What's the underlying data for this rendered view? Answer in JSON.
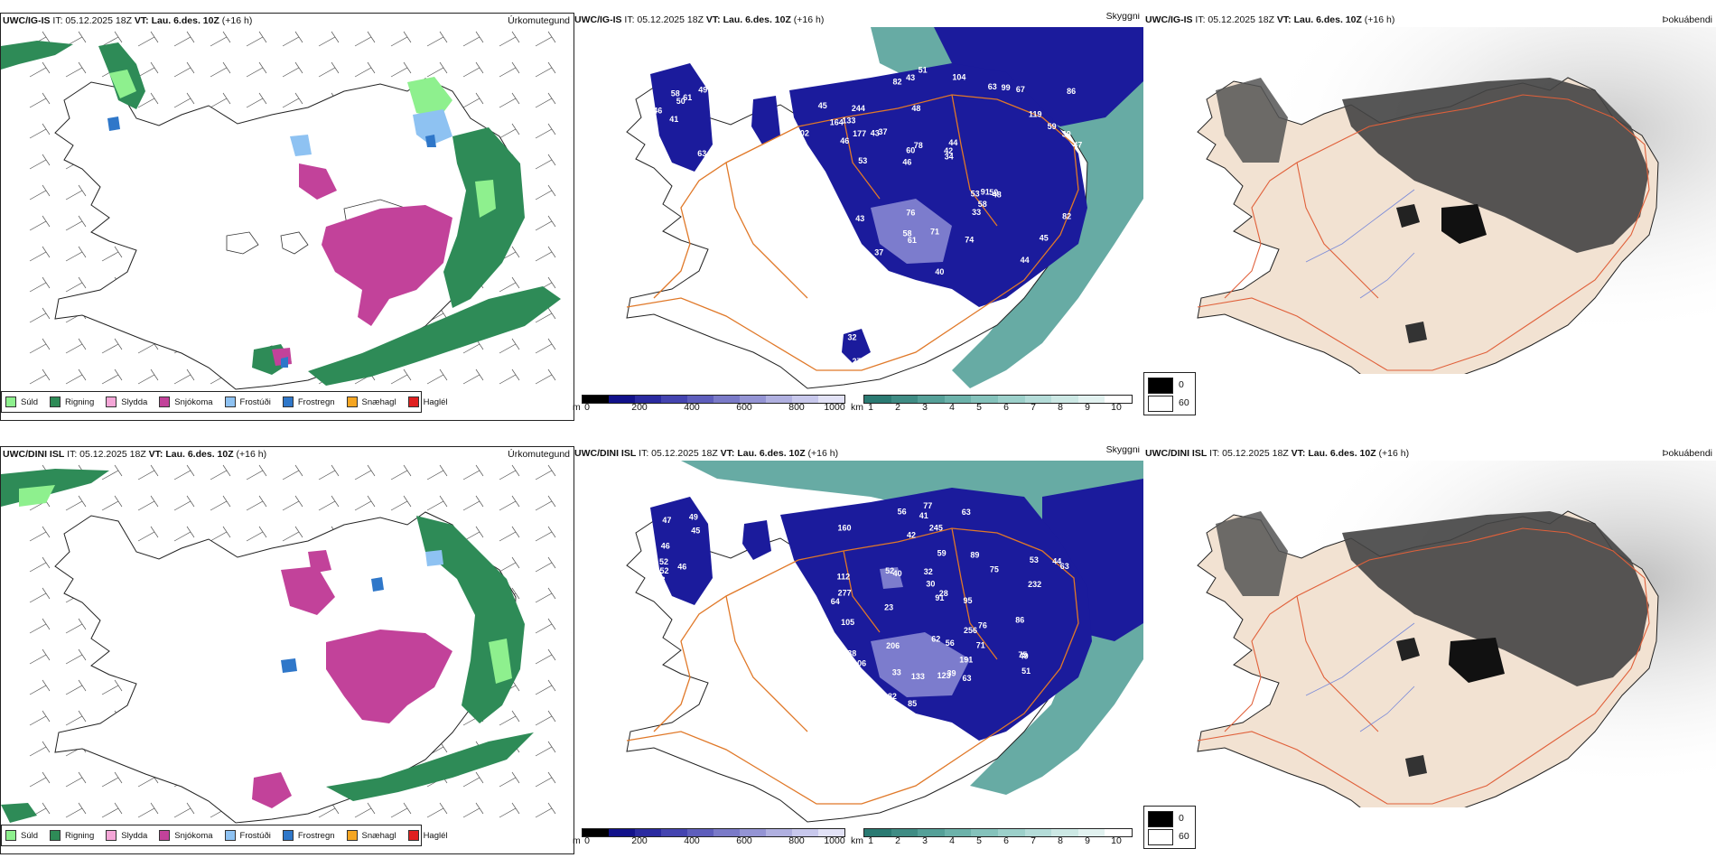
{
  "rows": [
    {
      "model": "UWC/IG-IS",
      "it": "IT: 05.12.2025 18Z",
      "vt_prefix": "VT:",
      "vt": "Lau. 6.des. 10Z",
      "lead": "(+16 h)",
      "labels": [
        "63",
        "46",
        "49",
        "41",
        "61",
        "53",
        "58",
        "50",
        "33",
        "37",
        "40",
        "39",
        "48",
        "44",
        "48",
        "45",
        "43",
        "47",
        "53",
        "59",
        "46",
        "58",
        "60",
        "244",
        "63",
        "43",
        "44",
        "45",
        "50",
        "40",
        "43",
        "46",
        "33",
        "34",
        "39",
        "42",
        "45",
        "61",
        "34",
        "46",
        "119",
        "86",
        "58",
        "74",
        "73",
        "90",
        "54",
        "71",
        "67",
        "51",
        "53",
        "102",
        "133",
        "99",
        "218",
        "104",
        "82",
        "78",
        "82",
        "76",
        "37",
        "91",
        "177",
        "39",
        "30",
        "164",
        "28",
        "32",
        "27"
      ]
    },
    {
      "model": "UWC/DINI ISL",
      "it": "IT: 05.12.2025 18Z",
      "vt_prefix": "VT:",
      "vt": "Lau. 6.des. 10Z",
      "lead": "(+16 h)",
      "labels": [
        "43",
        "49",
        "47",
        "45",
        "46",
        "46",
        "52",
        "52",
        "53",
        "75",
        "68",
        "77",
        "71",
        "91",
        "85",
        "56",
        "51",
        "52",
        "38",
        "82",
        "63",
        "41",
        "42",
        "28",
        "30",
        "33",
        "54",
        "63",
        "59",
        "76",
        "112",
        "106",
        "39",
        "62",
        "49",
        "66",
        "44",
        "95",
        "89",
        "86",
        "63",
        "245",
        "133",
        "105",
        "119",
        "277",
        "256",
        "123",
        "206",
        "191",
        "40",
        "36",
        "32",
        "232",
        "23",
        "56",
        "52",
        "75",
        "160",
        "64",
        "72",
        "34",
        "50",
        "37"
      ]
    }
  ],
  "panel_names": {
    "precip": "Úrkomutegund",
    "vis": "Skyggni",
    "fog": "Þokuábendi"
  },
  "precip_legend": [
    {
      "label": "Súld",
      "color": "#8ef08e"
    },
    {
      "label": "Rigning",
      "color": "#2e8b57"
    },
    {
      "label": "Slydda",
      "color": "#f4a6d7"
    },
    {
      "label": "Snjókoma",
      "color": "#c2429a"
    },
    {
      "label": "Frostúði",
      "color": "#8ec2f2"
    },
    {
      "label": "Frostregn",
      "color": "#2f77c9"
    },
    {
      "label": "Snæhagl",
      "color": "#f5a623"
    },
    {
      "label": "Haglél",
      "color": "#e02020"
    }
  ],
  "ceiling_scale": {
    "unit": "m",
    "ticks": [
      "0",
      "200",
      "400",
      "600",
      "800",
      "1000"
    ],
    "colors": [
      "#000000",
      "#11118a",
      "#2a2aa0",
      "#4444b0",
      "#5e5ebc",
      "#7a7ac8",
      "#9494d4",
      "#b0b0e0",
      "#c8c8ec",
      "#e2e2f6"
    ]
  },
  "vis_scale": {
    "unit": "km",
    "ticks": [
      "1",
      "2",
      "3",
      "4",
      "5",
      "6",
      "7",
      "8",
      "9",
      "10"
    ],
    "colors": [
      "#2a7a72",
      "#3f8c84",
      "#55a098",
      "#6cb2aa",
      "#84c2bb",
      "#9cd0ca",
      "#b4dcd8",
      "#cce8e4",
      "#e2f2f0",
      "#ffffff"
    ]
  },
  "fog_scale": {
    "items": [
      {
        "label": "0",
        "color": "#000000"
      },
      {
        "label": "60",
        "color": "#ffffff"
      }
    ]
  },
  "colors": {
    "roads": "#e07828",
    "land_fog": "#f2e2d2",
    "ocean_teal": "#4c9c94",
    "ceiling_dark": "#1b1b9c",
    "snow": "#c2429a",
    "rain": "#2e8b57"
  }
}
